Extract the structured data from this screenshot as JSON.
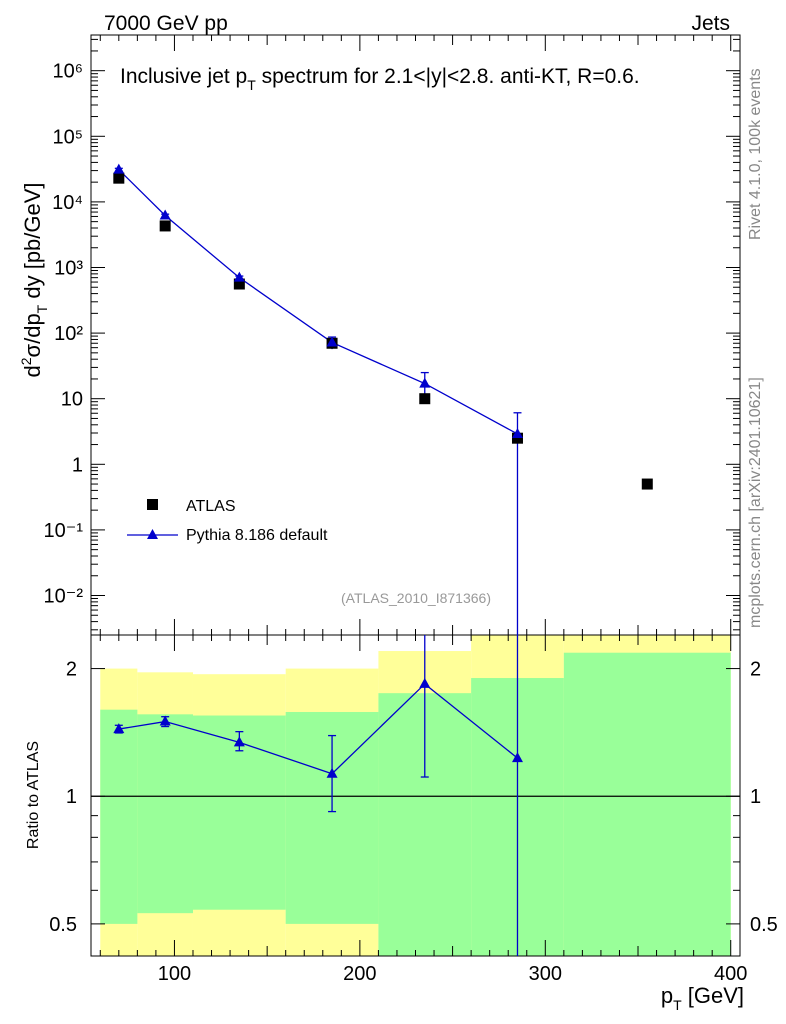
{
  "header": {
    "left": "7000 GeV pp",
    "right": "Jets"
  },
  "side_labels": {
    "top": "Rivet 4.1.0,  100k events",
    "bottom": "mcplots.cern.ch [arXiv:2401.10621]"
  },
  "chart_data": [
    {
      "type": "scatter",
      "panel": "main",
      "title_parts": {
        "a": "Inclusive jet p",
        "sub": "T",
        "b": " spectrum for 2.1<|y|<2.8.  anti-KT, R=0.6."
      },
      "ylabel_parts": {
        "a": "d",
        "sup": "2",
        "b": "σ/dp",
        "sub": "T",
        "c": " dy [pb/GeV]"
      },
      "yscale": "log",
      "ylim": [
        0.0025,
        3500000
      ],
      "xlim": [
        55,
        405
      ],
      "ytick_labels": [
        "10⁻²",
        "10⁻¹",
        "1",
        "10",
        "10²",
        "10³",
        "10⁴",
        "10⁵",
        "10⁶"
      ],
      "ytick_values": [
        0.01,
        0.1,
        1,
        10,
        100,
        1000,
        10000,
        100000,
        1000000
      ],
      "watermark": "(ATLAS_2010_I871366)",
      "legend": [
        {
          "label": "ATLAS",
          "marker": "square",
          "color": "#000000"
        },
        {
          "label": "Pythia 8.186 default",
          "marker": "triangle",
          "color": "#0000cc"
        }
      ],
      "series": [
        {
          "name": "ATLAS",
          "x": [
            70,
            95,
            135,
            185,
            235,
            285,
            355
          ],
          "y": [
            23000,
            4300,
            560,
            70,
            10,
            2.5,
            0.5
          ]
        },
        {
          "name": "Pythia 8.186 default",
          "x": [
            70,
            95,
            135,
            185,
            235,
            285
          ],
          "y": [
            31000,
            6200,
            700,
            72,
            17,
            2.9
          ],
          "err_low": [
            1500,
            300,
            40,
            15,
            6,
            2.9
          ],
          "err_high": [
            1500,
            300,
            40,
            15,
            8,
            3.2
          ]
        }
      ]
    },
    {
      "type": "scatter",
      "panel": "ratio",
      "ylabel": "Ratio to ATLAS",
      "xlabel_parts": {
        "a": "p",
        "sub": "T",
        "b": " [GeV]"
      },
      "yscale": "log",
      "ylim": [
        0.42,
        2.4
      ],
      "xlim": [
        55,
        405
      ],
      "xtick_labels": [
        "100",
        "200",
        "300",
        "400"
      ],
      "xtick_values": [
        100,
        200,
        300,
        400
      ],
      "ytick_labels": [
        "0.5",
        "1",
        "2"
      ],
      "ytick_values": [
        0.5,
        1,
        2
      ],
      "bands": {
        "yellow": [
          {
            "x0": 60,
            "x1": 80,
            "lo": 0.42,
            "hi": 2.0
          },
          {
            "x0": 80,
            "x1": 110,
            "lo": 0.42,
            "hi": 1.96
          },
          {
            "x0": 110,
            "x1": 160,
            "lo": 0.42,
            "hi": 1.94
          },
          {
            "x0": 160,
            "x1": 210,
            "lo": 0.42,
            "hi": 2.0
          },
          {
            "x0": 210,
            "x1": 260,
            "lo": 0.42,
            "hi": 2.2
          },
          {
            "x0": 260,
            "x1": 310,
            "lo": 0.42,
            "hi": 2.4
          },
          {
            "x0": 310,
            "x1": 400,
            "lo": 0.42,
            "hi": 2.4
          }
        ],
        "green": [
          {
            "x0": 60,
            "x1": 80,
            "lo": 0.5,
            "hi": 1.6
          },
          {
            "x0": 80,
            "x1": 110,
            "lo": 0.53,
            "hi": 1.56
          },
          {
            "x0": 110,
            "x1": 160,
            "lo": 0.54,
            "hi": 1.55
          },
          {
            "x0": 160,
            "x1": 210,
            "lo": 0.5,
            "hi": 1.58
          },
          {
            "x0": 210,
            "x1": 260,
            "lo": 0.42,
            "hi": 1.75
          },
          {
            "x0": 260,
            "x1": 310,
            "lo": 0.42,
            "hi": 1.9
          },
          {
            "x0": 310,
            "x1": 400,
            "lo": 0.42,
            "hi": 2.18
          }
        ]
      },
      "series": [
        {
          "name": "Pythia 8.186 default",
          "x": [
            70,
            95,
            135,
            185,
            235,
            285
          ],
          "y": [
            1.44,
            1.5,
            1.34,
            1.13,
            1.84,
            1.23
          ],
          "err_low": [
            0.03,
            0.04,
            0.06,
            0.21,
            0.73,
            0.81
          ],
          "err_high": [
            0.03,
            0.04,
            0.08,
            0.26,
            0.56,
            1.17
          ]
        }
      ]
    }
  ]
}
